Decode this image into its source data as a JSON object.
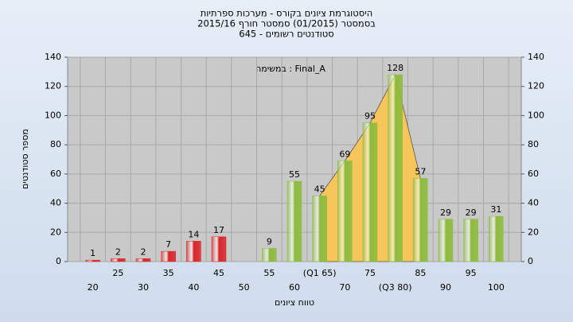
{
  "chart_data": {
    "type": "bar",
    "title": [
      "היסטוגרמת ציונים בקורס - מערכות ספרתיות",
      "בסמסטר (01/2015)  סמסטר חורף 2015/16",
      "סטודנטים רשומים - 645"
    ],
    "annotation": "במשימה : Final_A",
    "y_label": "מספר סטודנטים",
    "x_label": "טווח ציונים",
    "categories": [
      "20",
      "25",
      "30",
      "35",
      "40",
      "45",
      "50",
      "55",
      "60",
      "(Q1 65)",
      "70",
      "75",
      "(Q3 80)",
      "85",
      "90",
      "95",
      "100"
    ],
    "values": [
      1,
      2,
      2,
      7,
      14,
      17,
      null,
      9,
      55,
      45,
      69,
      95,
      128,
      57,
      29,
      29,
      31
    ],
    "colors": [
      "#d9262a",
      "#d9262a",
      "#d9262a",
      "#d9262a",
      "#d9262a",
      "#d9262a",
      "#d9262a",
      "#8dbb3c",
      "#8dbb3c",
      "#8dbb3c",
      "#8dbb3c",
      "#8dbb3c",
      "#8dbb3c",
      "#8dbb3c",
      "#8dbb3c",
      "#8dbb3c",
      "#8dbb3c"
    ],
    "highlight": [
      9,
      13
    ],
    "highlight_color": "#f7c65a",
    "ylim": [
      0,
      140
    ],
    "yticks": [
      0,
      20,
      40,
      60,
      80,
      100,
      120,
      140
    ],
    "grid": true
  }
}
